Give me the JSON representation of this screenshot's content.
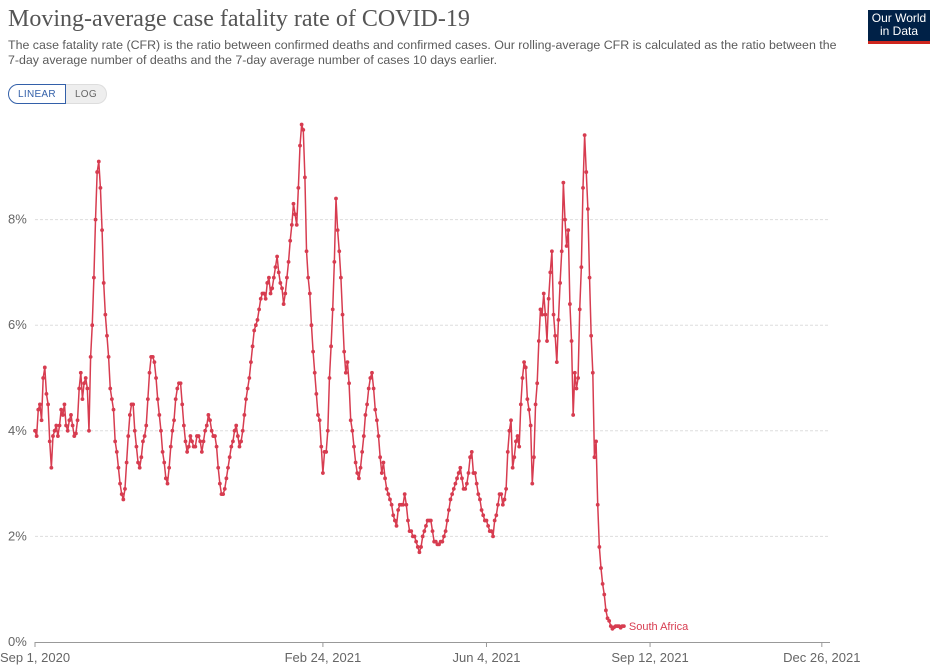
{
  "header": {
    "title": "Moving-average case fatality rate of COVID-19",
    "subtitle": "The case fatality rate (CFR) is the ratio between confirmed deaths and confirmed cases. Our rolling-average CFR is calculated as the ratio between the 7-day average number of deaths and the 7-day average number of cases 10 days earlier.",
    "logo_line1": "Our World",
    "logo_line2": "in Data"
  },
  "scale_toggle": {
    "linear_label": "LINEAR",
    "log_label": "LOG",
    "selected": "linear"
  },
  "colors": {
    "series": "#d73c50",
    "grid": "#dddddd",
    "logo_bg": "#002147",
    "logo_bar": "#ce261e",
    "accent": "#3360a9"
  },
  "chart_data": {
    "type": "line",
    "title": "Moving-average case fatality rate of COVID-19",
    "ylabel": "",
    "xlabel": "",
    "ylim": [
      0,
      10
    ],
    "xlim": [
      "2020-09-01",
      "2021-12-31"
    ],
    "y_ticks": [
      0,
      2,
      4,
      6,
      8
    ],
    "y_tick_labels": [
      "0%",
      "2%",
      "4%",
      "6%",
      "8%"
    ],
    "x_ticks": [
      "2020-09-01",
      "2021-02-24",
      "2021-06-04",
      "2021-09-12",
      "2021-12-26"
    ],
    "x_tick_labels": [
      "Sep 1, 2020",
      "Feb 24, 2021",
      "Jun 4, 2021",
      "Sep 12, 2021",
      "Dec 26, 2021"
    ],
    "grid": "horizontal dashed",
    "series": [
      {
        "name": "South Africa",
        "start_date": "2020-09-01",
        "values": [
          4.0,
          3.9,
          4.4,
          4.5,
          4.2,
          5.0,
          5.2,
          4.7,
          4.5,
          3.8,
          3.3,
          3.9,
          4.0,
          4.1,
          3.9,
          4.1,
          4.4,
          4.3,
          4.5,
          4.1,
          4.0,
          4.2,
          4.3,
          4.1,
          3.9,
          3.95,
          4.2,
          4.8,
          5.1,
          4.6,
          4.9,
          5.0,
          4.8,
          4.0,
          5.4,
          6.0,
          6.9,
          8.0,
          8.9,
          9.1,
          8.6,
          7.8,
          6.8,
          6.2,
          5.8,
          5.4,
          4.8,
          4.6,
          4.4,
          3.8,
          3.6,
          3.3,
          3.0,
          2.8,
          2.7,
          2.9,
          3.4,
          3.9,
          4.3,
          4.5,
          4.5,
          4.0,
          3.7,
          3.4,
          3.3,
          3.5,
          3.8,
          3.9,
          4.1,
          4.6,
          5.1,
          5.4,
          5.4,
          5.3,
          5.0,
          4.6,
          4.3,
          4.0,
          3.6,
          3.4,
          3.1,
          3.0,
          3.3,
          3.7,
          4.0,
          4.2,
          4.6,
          4.8,
          4.9,
          4.9,
          4.5,
          4.1,
          3.8,
          3.6,
          3.7,
          3.9,
          3.8,
          3.7,
          3.7,
          3.9,
          3.9,
          3.8,
          3.6,
          3.8,
          4.0,
          4.1,
          4.3,
          4.2,
          4.0,
          3.9,
          3.9,
          3.7,
          3.3,
          3.0,
          2.8,
          2.8,
          2.9,
          3.1,
          3.3,
          3.5,
          3.7,
          3.8,
          4.0,
          4.1,
          3.9,
          3.7,
          3.8,
          4.0,
          4.3,
          4.6,
          4.8,
          5.0,
          5.3,
          5.6,
          5.9,
          6.0,
          6.1,
          6.3,
          6.5,
          6.6,
          6.6,
          6.5,
          6.8,
          6.9,
          6.6,
          6.7,
          6.9,
          7.1,
          7.3,
          7.0,
          6.8,
          6.7,
          6.4,
          6.6,
          6.9,
          7.2,
          7.6,
          7.9,
          8.3,
          8.1,
          7.9,
          8.6,
          9.4,
          9.8,
          9.7,
          8.8,
          7.4,
          6.9,
          6.6,
          6.0,
          5.5,
          5.1,
          4.7,
          4.3,
          4.2,
          3.7,
          3.2,
          3.6,
          3.6,
          4.0,
          5.0,
          5.6,
          6.3,
          7.2,
          8.4,
          7.8,
          7.4,
          6.9,
          6.2,
          5.5,
          5.1,
          5.3,
          4.9,
          4.2,
          4.0,
          3.7,
          3.4,
          3.2,
          3.1,
          3.3,
          3.6,
          3.9,
          4.3,
          4.5,
          4.8,
          5.0,
          5.1,
          4.8,
          4.4,
          4.2,
          3.9,
          3.5,
          3.2,
          3.4,
          3.1,
          2.9,
          2.8,
          2.7,
          2.6,
          2.4,
          2.3,
          2.2,
          2.5,
          2.6,
          2.6,
          2.6,
          2.8,
          2.6,
          2.3,
          2.1,
          2.1,
          2.0,
          2.0,
          1.9,
          1.8,
          1.7,
          1.8,
          2.0,
          2.1,
          2.2,
          2.3,
          2.3,
          2.3,
          2.1,
          1.9,
          1.9,
          1.85,
          1.85,
          1.9,
          1.9,
          2.0,
          2.1,
          2.3,
          2.5,
          2.7,
          2.8,
          2.9,
          3.0,
          3.1,
          3.2,
          3.3,
          3.1,
          2.9,
          2.9,
          3.0,
          3.2,
          3.5,
          3.6,
          3.2,
          3.2,
          3.0,
          2.8,
          2.7,
          2.5,
          2.4,
          2.3,
          2.3,
          2.2,
          2.1,
          2.1,
          2.0,
          2.3,
          2.4,
          2.6,
          2.8,
          2.8,
          2.6,
          2.7,
          2.9,
          3.6,
          4.0,
          4.2,
          3.3,
          3.5,
          3.8,
          3.9,
          3.7,
          4.5,
          5.0,
          5.3,
          5.2,
          4.6,
          4.4,
          4.1,
          3.0,
          3.5,
          4.5,
          4.9,
          5.7,
          6.3,
          6.2,
          6.6,
          6.2,
          5.7,
          6.5,
          7.0,
          7.4,
          6.2,
          5.8,
          5.3,
          6.1,
          6.8,
          7.4,
          8.7,
          8.0,
          7.5,
          7.8,
          6.4,
          5.7,
          4.3,
          5.1,
          4.8,
          5.0,
          6.3,
          7.1,
          8.6,
          9.6,
          8.9,
          8.2,
          6.9,
          5.8,
          5.1,
          3.5,
          3.8,
          2.6,
          1.8,
          1.4,
          1.1,
          0.9,
          0.6,
          0.45,
          0.4,
          0.3,
          0.25,
          0.28,
          0.3,
          0.3,
          0.3,
          0.27,
          0.3,
          0.3
        ]
      }
    ]
  }
}
